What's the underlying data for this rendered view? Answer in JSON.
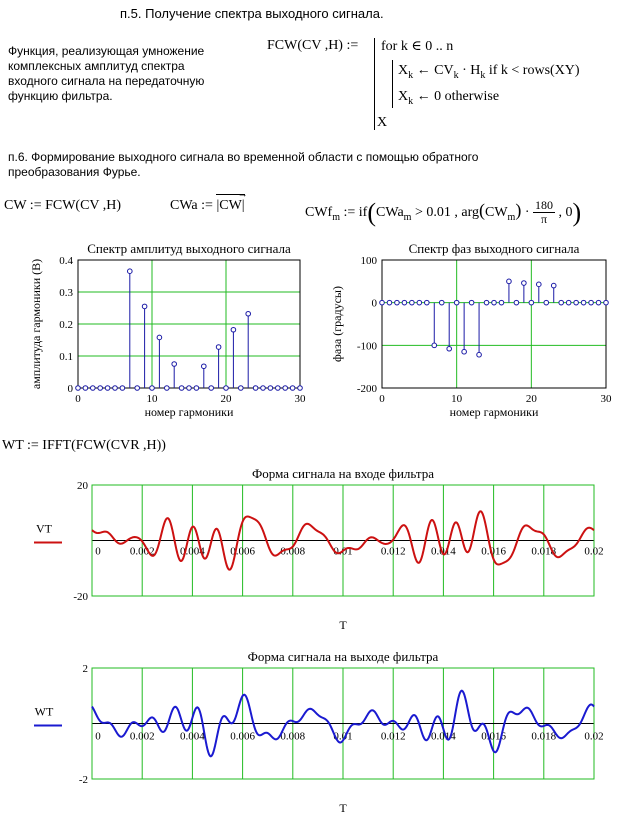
{
  "section5": {
    "heading": "п.5. Получение спектра выходного сигнала.",
    "desc_lines": [
      "Функция, реализующая умножение",
      "комплексных амплитуд спектра",
      "входного сигнала на передаточную",
      "функцию фильтра."
    ],
    "fcw_lhs": "FCW(CV ,H) :=",
    "prog_line1": "for  k ∈ 0 .. n",
    "prog_line2": "X",
    "prog_line2_sub": "k",
    "prog_line2_b": "← CV",
    "prog_line2_sub2": "k",
    "prog_line2_c": "· H",
    "prog_line2_sub3": "k",
    "prog_line2_d": "  if  k < rows(XY)",
    "prog_line3": "X",
    "prog_line3_sub": "k",
    "prog_line3_b": "← 0   otherwise",
    "prog_ret": "X"
  },
  "section6": {
    "heading_line1": "п.6. Формирование выходного сигнала во временной области с помощью обратного",
    "heading_line2": "преобразования Фурье.",
    "eq_cw": "CW := FCW(CV ,H)",
    "eq_cwa_lhs": "CWa :=",
    "eq_cwa_rhs": "|CW|",
    "eq_cwf_lhs": "CWf",
    "eq_cwf_sub": "m",
    "eq_cwf_mid": ":= if",
    "eq_cwf_cond": "CWa",
    "eq_cwf_cond_sub": "m",
    "eq_cwf_cond2": "> 0.01 , arg",
    "eq_cwf_arg": "CW",
    "eq_cwf_arg_sub": "m",
    "eq_cwf_dot": "·",
    "eq_cwf_num": "180",
    "eq_cwf_den": "π",
    "eq_cwf_end": ", 0",
    "eq_wt": "WT := IFFT(FCW(CVR ,H))"
  },
  "chart_data": [
    {
      "type": "stem",
      "title": "Спектр амплитуд выходного сигнала",
      "xlabel": "номер гармоники",
      "ylabel": "амплитуда гармоники (В)",
      "xlim": [
        0,
        30
      ],
      "ylim": [
        0,
        0.4
      ],
      "xticks": [
        "0",
        "10",
        "20",
        "30"
      ],
      "yticks": [
        "0",
        "0.1",
        "0.2",
        "0.3",
        "0.4"
      ],
      "x": [
        0,
        1,
        2,
        3,
        4,
        5,
        6,
        7,
        8,
        9,
        10,
        11,
        12,
        13,
        14,
        15,
        16,
        17,
        18,
        19,
        20,
        21,
        22,
        23,
        24,
        25,
        26,
        27,
        28,
        29,
        30
      ],
      "values": [
        0,
        0,
        0,
        0,
        0,
        0,
        0,
        0.365,
        0,
        0.255,
        0,
        0.158,
        0,
        0.075,
        0,
        0,
        0,
        0.068,
        0,
        0.128,
        0,
        0.182,
        0,
        0.232,
        0,
        0,
        0,
        0,
        0,
        0,
        0
      ],
      "color": "#1a1aa6",
      "grid_color": "#22bb22"
    },
    {
      "type": "stem",
      "title": "Спектр фаз выходного сигнала",
      "xlabel": "номер гармоники",
      "ylabel": "фаза (градусы)",
      "xlim": [
        0,
        30
      ],
      "ylim": [
        -200,
        100
      ],
      "xticks": [
        "0",
        "10",
        "20",
        "30"
      ],
      "yticks": [
        "-200",
        "-100",
        "0",
        "100"
      ],
      "x": [
        0,
        1,
        2,
        3,
        4,
        5,
        6,
        7,
        8,
        9,
        10,
        11,
        12,
        13,
        14,
        15,
        16,
        17,
        18,
        19,
        20,
        21,
        22,
        23,
        24,
        25,
        26,
        27,
        28,
        29,
        30
      ],
      "values": [
        0,
        0,
        0,
        0,
        0,
        0,
        0,
        -100,
        0,
        -108,
        0,
        -115,
        0,
        -122,
        0,
        0,
        0,
        50,
        0,
        46,
        0,
        43,
        0,
        40,
        0,
        0,
        0,
        0,
        0,
        0,
        0
      ],
      "color": "#1a1aa6",
      "grid_color": "#22bb22"
    },
    {
      "type": "line",
      "title": "Форма сигнала на входе фильтра",
      "xlabel": "T",
      "ylabel": "VT",
      "xlim": [
        0,
        0.02
      ],
      "ylim": [
        -20,
        20
      ],
      "xticks": [
        "0",
        "0.002",
        "0.004",
        "0.006",
        "0.008",
        "0.01",
        "0.012",
        "0.014",
        "0.016",
        "0.018",
        "0.02"
      ],
      "yticks": [
        "-20",
        "",
        "20"
      ],
      "color": "#cc1111",
      "grid_color": "#22bb22"
    },
    {
      "type": "line",
      "title": "Форма сигнала на  выходе фильтра",
      "xlabel": "T",
      "ylabel": "WT",
      "xlim": [
        0,
        0.02
      ],
      "ylim": [
        -2,
        2
      ],
      "xticks": [
        "0",
        "0.002",
        "0.004",
        "0.006",
        "0.008",
        "0.01",
        "0.012",
        "0.014",
        "0.016",
        "0.018",
        "0.02"
      ],
      "yticks": [
        "-2",
        "",
        "2"
      ],
      "color": "#1a1ad0",
      "grid_color": "#22bb22"
    }
  ]
}
